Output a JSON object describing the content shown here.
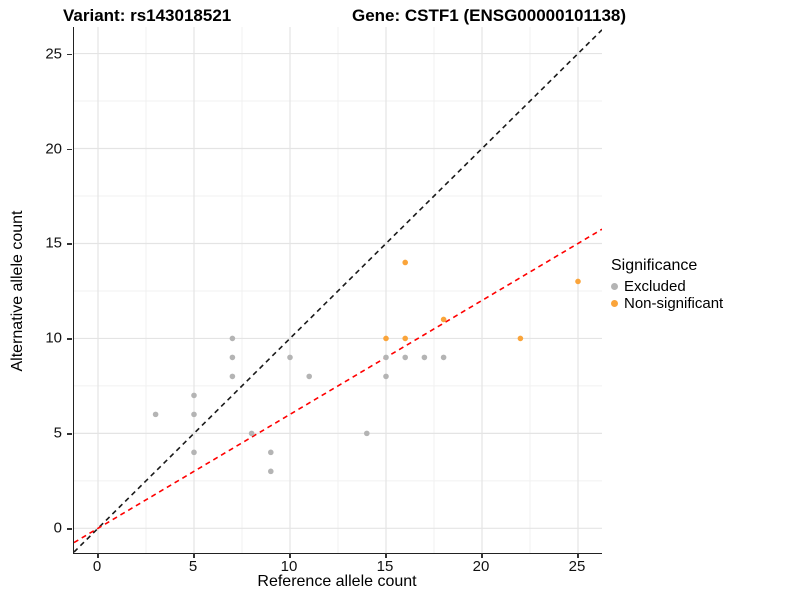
{
  "titles": {
    "variant": "Variant: rs143018521",
    "gene": "Gene: CSTF1 (ENSG00000101138)"
  },
  "legend": {
    "title": "Significance",
    "items": [
      {
        "label": "Excluded",
        "color": "#b4b4b4"
      },
      {
        "label": "Non-significant",
        "color": "#faa43a"
      }
    ]
  },
  "chart_data": {
    "type": "scatter",
    "title": "Variant: rs143018521  Gene: CSTF1 (ENSG00000101138)",
    "xlabel": "Reference allele count",
    "ylabel": "Alternative allele count",
    "xlim": [
      -1.25,
      26.25
    ],
    "ylim": [
      -1.3,
      26.4
    ],
    "x_ticks": [
      0,
      5,
      10,
      15,
      20,
      25
    ],
    "y_ticks": [
      0,
      5,
      10,
      15,
      20,
      25
    ],
    "minor_ticks": [
      2.5,
      7.5,
      12.5,
      17.5,
      22.5
    ],
    "grid": "major+minor",
    "legend_position": "right",
    "point_radius": 2.8,
    "series": [
      {
        "name": "Excluded",
        "color": "#b4b4b4",
        "points": [
          [
            3,
            6
          ],
          [
            5,
            4
          ],
          [
            5,
            6
          ],
          [
            5,
            7
          ],
          [
            7,
            8
          ],
          [
            7,
            9
          ],
          [
            7,
            10
          ],
          [
            8,
            5
          ],
          [
            9,
            3
          ],
          [
            9,
            4
          ],
          [
            10,
            9
          ],
          [
            11,
            8
          ],
          [
            14,
            5
          ],
          [
            15,
            8
          ],
          [
            15,
            9
          ],
          [
            16,
            9
          ],
          [
            17,
            9
          ],
          [
            18,
            9
          ]
        ]
      },
      {
        "name": "Non-significant",
        "color": "#faa43a",
        "points": [
          [
            15,
            10
          ],
          [
            16,
            10
          ],
          [
            16,
            14
          ],
          [
            18,
            11
          ],
          [
            22,
            10
          ],
          [
            25,
            13
          ]
        ]
      }
    ],
    "lines": [
      {
        "name": "identity",
        "slope": 1.0,
        "intercept": 0,
        "color": "#1a1a1a",
        "dash": "5,4"
      },
      {
        "name": "expected-ratio",
        "slope": 0.6,
        "intercept": 0,
        "color": "#ff0000",
        "dash": "5,4"
      }
    ],
    "grid_major_color": "#e4e4e4",
    "grid_minor_color": "#f1f1f1"
  }
}
